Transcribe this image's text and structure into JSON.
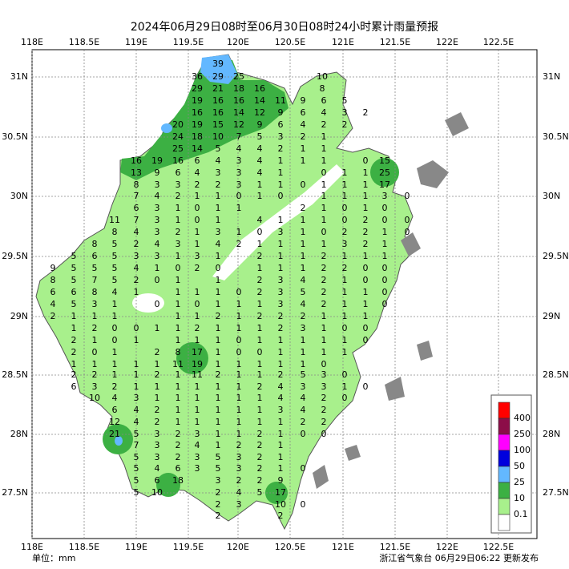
{
  "title": "2024年06月29日08时至06月30日08时24小时累计雨量预报",
  "map": {
    "x_labels": [
      "118E",
      "118.5E",
      "119E",
      "119.5E",
      "120E",
      "120.5E",
      "121E",
      "121.5E",
      "122E",
      "122.5E"
    ],
    "y_labels": [
      "31N",
      "30.5N",
      "30N",
      "29.5N",
      "29N",
      "28.5N",
      "28N",
      "27.5N"
    ],
    "stations": [
      [
        39
      ],
      [
        36,
        29,
        25,
        10
      ],
      [
        29,
        21,
        18,
        16,
        8
      ],
      [
        19,
        16,
        16,
        14,
        11,
        9,
        6,
        5
      ],
      [
        16,
        16,
        14,
        12,
        9,
        6,
        4,
        3,
        2
      ],
      [
        20,
        19,
        15,
        12,
        9,
        6,
        4,
        2,
        2
      ],
      [
        24,
        18,
        10,
        7,
        5,
        3,
        2,
        1
      ],
      [
        25,
        14,
        5,
        4,
        4,
        2,
        1,
        1
      ],
      [
        16,
        19,
        16,
        6,
        4,
        3,
        4,
        1,
        1,
        1,
        0,
        15
      ],
      [
        13,
        9,
        6,
        4,
        3,
        3,
        4,
        1,
        0,
        1,
        1,
        25
      ],
      [
        8,
        3,
        3,
        2,
        2,
        3,
        1,
        1,
        0,
        1,
        1,
        1,
        17
      ],
      [
        7,
        4,
        2,
        1,
        1,
        0,
        1,
        0,
        1,
        1,
        1,
        3,
        0
      ],
      [
        6,
        3,
        1,
        0,
        1,
        1,
        2,
        1,
        0,
        1,
        0
      ],
      [
        11,
        7,
        3,
        1,
        0,
        1,
        4,
        1,
        1,
        1,
        0,
        2,
        0,
        0
      ],
      [
        8,
        4,
        3,
        2,
        1,
        3,
        1,
        0,
        3,
        1,
        0,
        2,
        2,
        1,
        0
      ],
      [
        8,
        5,
        2,
        4,
        3,
        1,
        4,
        2,
        1,
        1,
        1,
        1,
        3,
        2,
        1
      ],
      [
        5,
        6,
        5,
        3,
        3,
        1,
        3,
        1,
        2,
        1,
        1,
        2,
        1,
        1,
        1
      ],
      [
        9,
        5,
        5,
        5,
        4,
        1,
        0,
        2,
        0,
        1,
        1,
        1,
        2,
        2,
        0,
        0
      ],
      [
        8,
        5,
        7,
        5,
        2,
        0,
        1,
        1,
        2,
        3,
        4,
        2,
        1,
        0,
        0
      ],
      [
        6,
        6,
        8,
        4,
        1,
        1,
        1,
        1,
        0,
        2,
        3,
        5,
        2,
        1,
        1,
        0
      ],
      [
        4,
        5,
        3,
        1,
        0,
        1,
        0,
        1,
        1,
        1,
        3,
        4,
        2,
        1,
        1,
        0
      ],
      [
        2,
        1,
        1,
        1,
        1,
        1,
        2,
        1,
        2,
        2,
        2,
        1,
        1,
        1
      ],
      [
        1,
        2,
        0,
        0,
        1,
        1,
        2,
        1,
        1,
        1,
        2,
        3,
        1,
        0,
        0
      ],
      [
        2,
        1,
        0,
        1,
        1,
        1,
        1,
        0,
        1,
        1,
        1,
        1,
        1,
        0
      ],
      [
        2,
        0,
        1,
        2,
        8,
        17,
        1,
        0,
        0,
        1,
        1,
        1,
        1
      ],
      [
        1,
        1,
        1,
        1,
        1,
        11,
        19,
        1,
        1,
        1,
        1,
        1,
        0
      ],
      [
        2,
        2,
        1,
        1,
        2,
        1,
        11,
        2,
        1,
        1,
        2,
        5,
        3,
        0
      ],
      [
        6,
        3,
        2,
        1,
        1,
        1,
        1,
        1,
        1,
        2,
        4,
        3,
        3,
        1,
        0
      ],
      [
        10,
        4,
        3,
        1,
        1,
        1,
        1,
        1,
        1,
        4,
        4,
        2,
        0
      ],
      [
        6,
        4,
        2,
        1,
        1,
        1,
        1,
        1,
        3,
        4,
        2
      ],
      [
        12,
        4,
        2,
        1,
        1,
        1,
        1,
        1,
        1,
        2,
        2
      ],
      [
        21,
        5,
        3,
        2,
        3,
        1,
        1,
        2,
        1,
        0,
        0
      ],
      [
        7,
        3,
        2,
        4,
        1,
        2,
        2,
        1
      ],
      [
        5,
        3,
        2,
        3,
        5,
        3,
        2,
        1
      ],
      [
        5,
        4,
        6,
        3,
        5,
        3,
        2,
        1,
        0
      ],
      [
        5,
        6,
        18,
        3,
        2,
        2,
        9
      ],
      [
        5,
        10,
        2,
        4,
        5,
        17
      ],
      [
        2,
        3,
        10,
        0
      ],
      [
        2,
        2
      ]
    ]
  },
  "legend": {
    "labels": [
      "400",
      "250",
      "100",
      "50",
      "25",
      "10",
      "0.1"
    ],
    "colors": [
      "#ff0000",
      "#8c0d48",
      "#ff00ff",
      "#0000dd",
      "#63b8ff",
      "#3cb043",
      "#a8f08c",
      "#ffffff"
    ]
  },
  "footer": {
    "unit": "单位：mm",
    "source": "浙江省气象台 06月29日06:22 更新发布"
  }
}
